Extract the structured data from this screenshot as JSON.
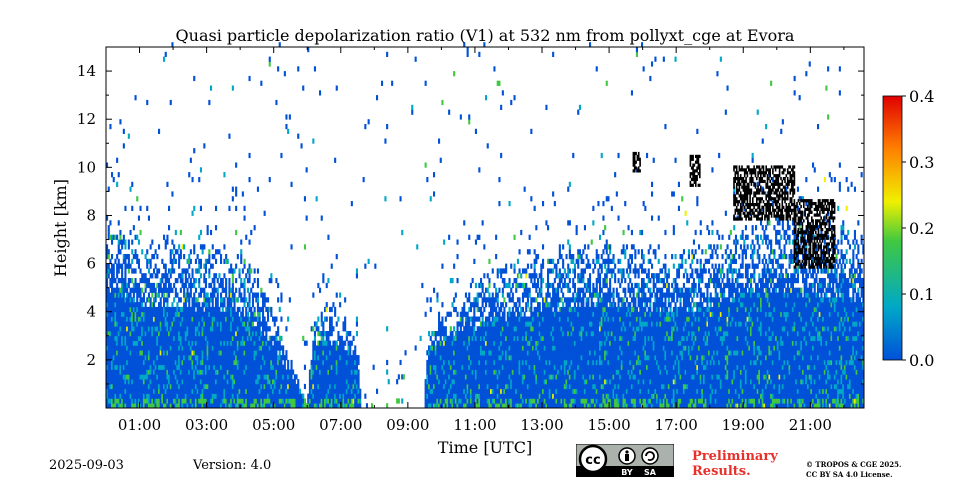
{
  "chart_data": {
    "type": "heatmap",
    "title": "Quasi particle depolarization ratio (V1) at 532 nm from pollyxt_cge at Evora",
    "xlabel": "Time [UTC]",
    "ylabel": "Height [km]",
    "xlim": [
      0,
      22.6
    ],
    "ylim": [
      0,
      15
    ],
    "x_ticks": [
      {
        "value": 1,
        "label": "01:00"
      },
      {
        "value": 3,
        "label": "03:00"
      },
      {
        "value": 5,
        "label": "05:00"
      },
      {
        "value": 7,
        "label": "07:00"
      },
      {
        "value": 9,
        "label": "09:00"
      },
      {
        "value": 11,
        "label": "11:00"
      },
      {
        "value": 13,
        "label": "13:00"
      },
      {
        "value": 15,
        "label": "15:00"
      },
      {
        "value": 17,
        "label": "17:00"
      },
      {
        "value": 19,
        "label": "19:00"
      },
      {
        "value": 21,
        "label": "21:00"
      }
    ],
    "y_ticks": [
      {
        "value": 2,
        "label": "2"
      },
      {
        "value": 4,
        "label": "4"
      },
      {
        "value": 6,
        "label": "6"
      },
      {
        "value": 8,
        "label": "8"
      },
      {
        "value": 10,
        "label": "10"
      },
      {
        "value": 12,
        "label": "12"
      },
      {
        "value": 14,
        "label": "14"
      }
    ],
    "colorbar": {
      "min": 0.0,
      "max": 0.4,
      "ticks": [
        {
          "value": 0.0,
          "label": "0.0"
        },
        {
          "value": 0.1,
          "label": "0.1"
        },
        {
          "value": 0.2,
          "label": "0.2"
        },
        {
          "value": 0.3,
          "label": "0.3"
        },
        {
          "value": 0.4,
          "label": "0.4"
        }
      ],
      "colors": [
        "#0050d8",
        "#00a8c8",
        "#40c840",
        "#f0f000",
        "#ff8000",
        "#e00000"
      ]
    },
    "approx_signal_top_km": [
      {
        "t": 0.0,
        "h": 8.0
      },
      {
        "t": 1.0,
        "h": 7.0
      },
      {
        "t": 2.0,
        "h": 6.8
      },
      {
        "t": 3.0,
        "h": 6.6
      },
      {
        "t": 4.0,
        "h": 6.3
      },
      {
        "t": 4.5,
        "h": 5.5
      },
      {
        "t": 5.0,
        "h": 4.0
      },
      {
        "t": 5.5,
        "h": 2.0
      },
      {
        "t": 6.0,
        "h": 0.1
      },
      {
        "t": 6.1,
        "h": 3.0
      },
      {
        "t": 6.5,
        "h": 4.5
      },
      {
        "t": 7.0,
        "h": 4.0
      },
      {
        "t": 7.5,
        "h": 3.0
      },
      {
        "t": 7.6,
        "h": 0.0
      },
      {
        "t": 9.5,
        "h": 0.0
      },
      {
        "t": 9.6,
        "h": 3.5
      },
      {
        "t": 10.0,
        "h": 4.2
      },
      {
        "t": 11.0,
        "h": 5.2
      },
      {
        "t": 12.0,
        "h": 6.0
      },
      {
        "t": 13.0,
        "h": 6.4
      },
      {
        "t": 14.0,
        "h": 6.8
      },
      {
        "t": 15.0,
        "h": 6.8
      },
      {
        "t": 16.0,
        "h": 6.5
      },
      {
        "t": 17.0,
        "h": 6.4
      },
      {
        "t": 18.0,
        "h": 6.8
      },
      {
        "t": 19.0,
        "h": 7.6
      },
      {
        "t": 20.0,
        "h": 8.0
      },
      {
        "t": 21.0,
        "h": 7.5
      },
      {
        "t": 22.0,
        "h": 7.5
      },
      {
        "t": 22.6,
        "h": 7.0
      }
    ],
    "cloud_regions": [
      {
        "t_start": 18.7,
        "t_end": 20.5,
        "h_bottom": 7.8,
        "h_top": 10.0
      },
      {
        "t_start": 20.5,
        "t_end": 21.7,
        "h_bottom": 5.8,
        "h_top": 8.6
      },
      {
        "t_start": 15.7,
        "t_end": 15.9,
        "h_bottom": 9.8,
        "h_top": 10.6
      },
      {
        "t_start": 17.4,
        "t_end": 17.7,
        "h_bottom": 9.2,
        "h_top": 10.4
      }
    ]
  },
  "footer": {
    "date": "2025-09-03",
    "version": "Version: 4.0",
    "preliminary_line1": "Preliminary",
    "preliminary_line2": "Results.",
    "copyright_line1": "© TROPOS & CGE 2025.",
    "copyright_line2": "CC BY SA 4.0 License.",
    "license_badge": {
      "label_by": "BY",
      "label_sa": "SA",
      "icon": "cc-by-sa-icon"
    }
  }
}
